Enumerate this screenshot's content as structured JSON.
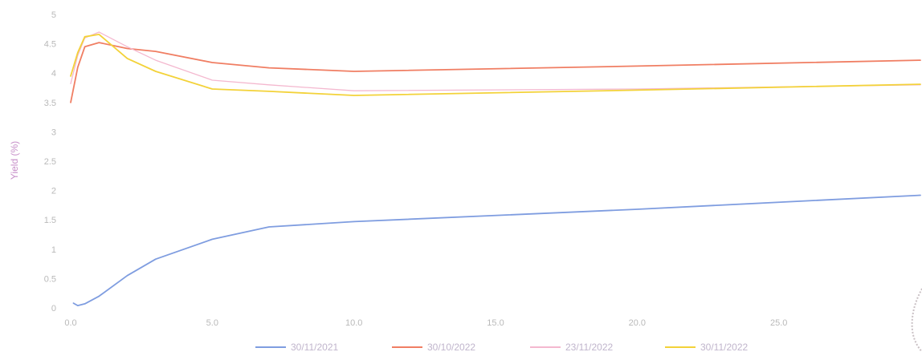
{
  "chart_data": {
    "type": "line",
    "title": "",
    "xlabel": "",
    "ylabel": "Yield (%)",
    "xlim": [
      0,
      30
    ],
    "ylim": [
      0,
      5
    ],
    "x_ticks": [
      0,
      5,
      10,
      15,
      20,
      25
    ],
    "x_tick_labels": [
      "0.0",
      "5.0",
      "10.0",
      "15.0",
      "20.0",
      "25.0"
    ],
    "y_ticks": [
      0,
      0.5,
      1,
      1.5,
      2,
      2.5,
      3,
      3.5,
      4,
      4.5,
      5
    ],
    "y_tick_labels": [
      "0",
      "0.5",
      "1",
      "1.5",
      "2",
      "2.5",
      "3",
      "3.5",
      "4",
      "4.5",
      "5"
    ],
    "grid": false,
    "legend_position": "bottom",
    "series": [
      {
        "name": "30/11/2021",
        "color": "#7f9de0",
        "points": [
          [
            0.1,
            0.08
          ],
          [
            0.25,
            0.04
          ],
          [
            0.5,
            0.07
          ],
          [
            1,
            0.2
          ],
          [
            2,
            0.55
          ],
          [
            3,
            0.83
          ],
          [
            5,
            1.17
          ],
          [
            7,
            1.38
          ],
          [
            10,
            1.47
          ],
          [
            20,
            1.68
          ],
          [
            30,
            1.92
          ]
        ]
      },
      {
        "name": "30/10/2022",
        "color": "#f07e63",
        "points": [
          [
            0,
            3.5
          ],
          [
            0.25,
            4.1
          ],
          [
            0.5,
            4.45
          ],
          [
            1,
            4.52
          ],
          [
            2,
            4.42
          ],
          [
            3,
            4.37
          ],
          [
            5,
            4.18
          ],
          [
            7,
            4.09
          ],
          [
            10,
            4.03
          ],
          [
            20,
            4.12
          ],
          [
            30,
            4.22
          ]
        ]
      },
      {
        "name": "23/11/2022",
        "color": "#f4b8cf",
        "points": [
          [
            0,
            3.82
          ],
          [
            0.25,
            4.3
          ],
          [
            0.5,
            4.6
          ],
          [
            1,
            4.7
          ],
          [
            2,
            4.45
          ],
          [
            3,
            4.22
          ],
          [
            5,
            3.88
          ],
          [
            7,
            3.8
          ],
          [
            10,
            3.7
          ],
          [
            20,
            3.73
          ],
          [
            30,
            3.8
          ]
        ]
      },
      {
        "name": "30/11/2022",
        "color": "#f3d239",
        "points": [
          [
            0,
            3.95
          ],
          [
            0.25,
            4.35
          ],
          [
            0.5,
            4.62
          ],
          [
            1,
            4.66
          ],
          [
            2,
            4.25
          ],
          [
            3,
            4.03
          ],
          [
            5,
            3.73
          ],
          [
            7,
            3.69
          ],
          [
            10,
            3.62
          ],
          [
            20,
            3.71
          ],
          [
            30,
            3.81
          ]
        ]
      }
    ]
  }
}
